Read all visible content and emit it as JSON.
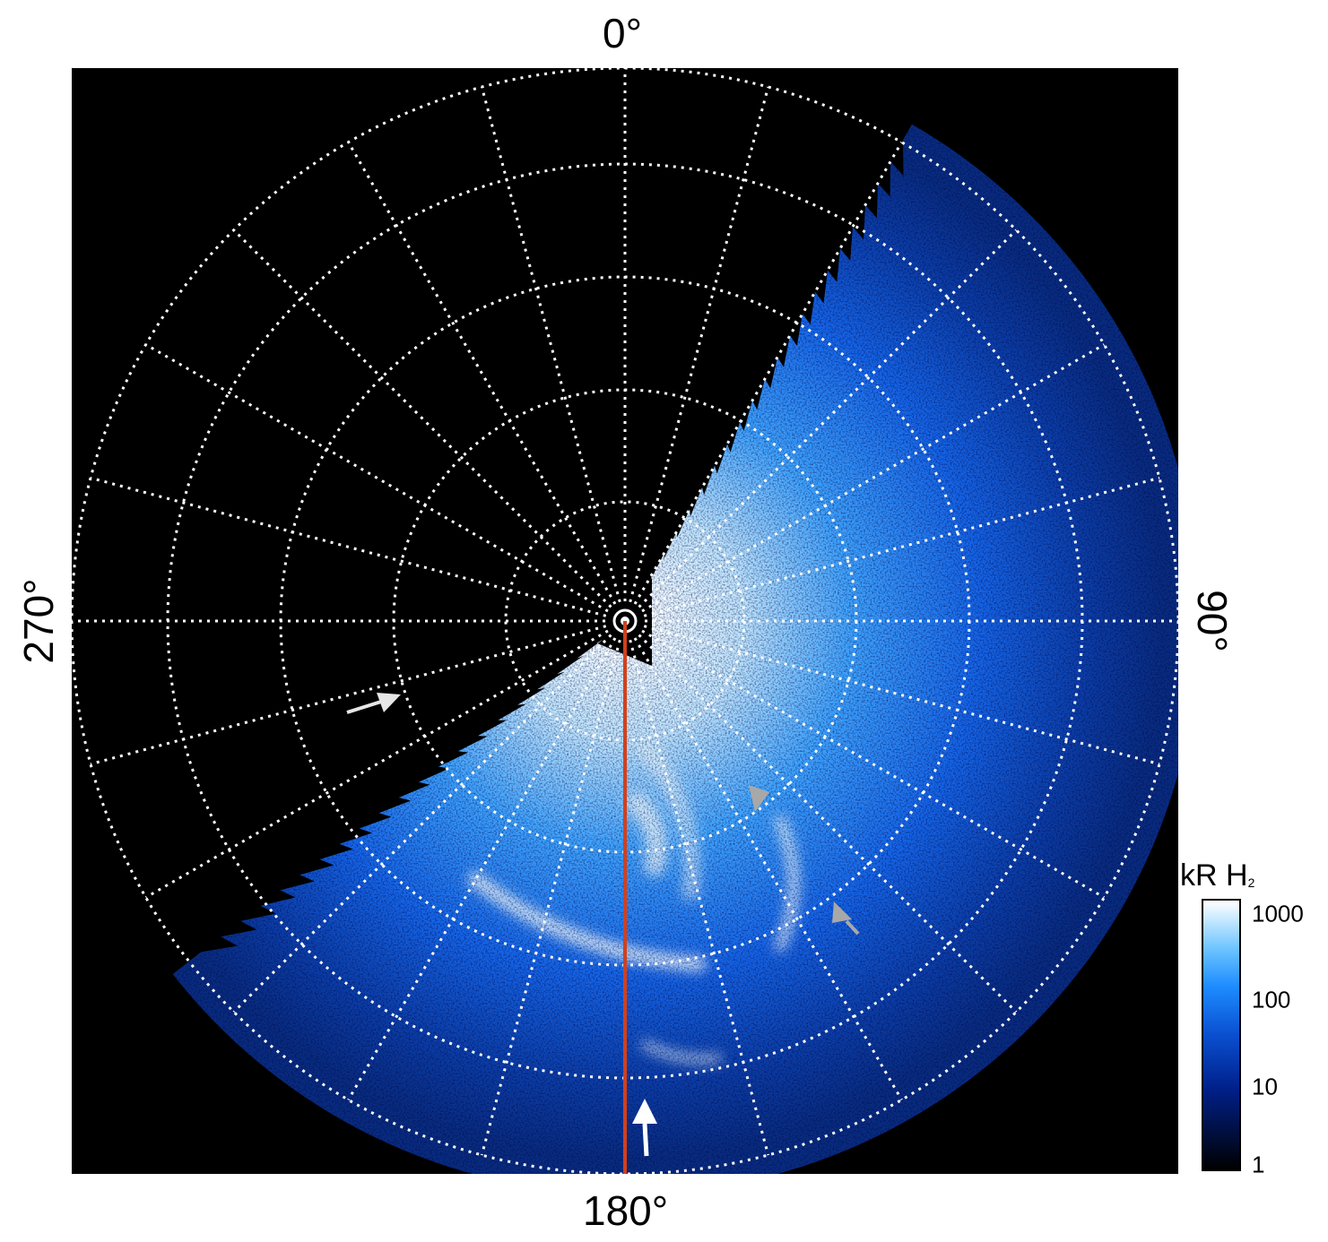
{
  "figure": {
    "axis_labels": {
      "top": "0°",
      "bottom": "180°",
      "left": "270°",
      "right": "90°"
    },
    "colorbar": {
      "title_main": "kR H",
      "title_sub": "2",
      "scale": "log",
      "range": [
        1,
        1000
      ],
      "ticks": [
        "1000",
        "100",
        "10",
        "1"
      ],
      "colors": [
        "#000000",
        "#00208a",
        "#1d8cff",
        "#ffffff"
      ]
    },
    "grid": {
      "style": "dotted",
      "color": "#ffffff",
      "meridian_count": 24,
      "latitude_circle_count": 5
    },
    "markers": {
      "reference_line_color": "#d2401c",
      "arrow_white": "#ffffff",
      "arrow_gray": "#a0a0a0"
    }
  }
}
